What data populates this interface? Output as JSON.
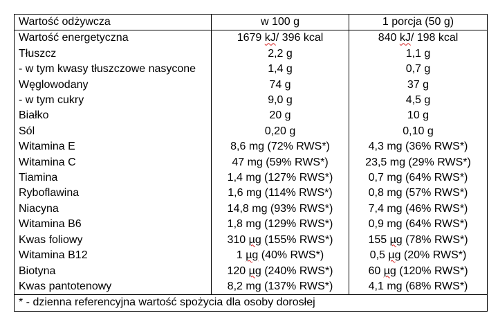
{
  "table": {
    "headers": [
      "Wartość odżywcza",
      "w 100 g",
      "1 porcja (50 g)"
    ],
    "rows": [
      {
        "name": "Wartość energetyczna",
        "per100_pre": "1679 ",
        "per100_mark": "kJ",
        "per100_post": "/ 396 kcal",
        "portion_pre": "840 ",
        "portion_mark": "kJ",
        "portion_post": "/ 198 kcal"
      },
      {
        "name": "Tłuszcz",
        "per100": "2,2 g",
        "portion": "1,1 g"
      },
      {
        "name": "- w tym kwasy tłuszczowe nasycone",
        "per100": "1,4 g",
        "portion": "0,7 g"
      },
      {
        "name": "Węglowodany",
        "per100": "74 g",
        "portion": "37 g"
      },
      {
        "name": "- w tym cukry",
        "per100": "9,0 g",
        "portion": "4,5 g"
      },
      {
        "name": "Białko",
        "per100": "20 g",
        "portion": "10 g"
      },
      {
        "name": "Sól",
        "per100": "0,20 g",
        "portion": "0,10 g"
      },
      {
        "name": "Witamina E",
        "per100": "8,6 mg (72% RWS*)",
        "portion": "4,3 mg (36% RWS*)"
      },
      {
        "name": "Witamina C",
        "per100": "47 mg (59% RWS*)",
        "portion": "23,5 mg (29% RWS*)"
      },
      {
        "name": "Tiamina",
        "per100": "1,4 mg (127% RWS*)",
        "portion": "0,7 mg (64% RWS*)"
      },
      {
        "name": "Ryboflawina",
        "per100": "1,6 mg (114% RWS*)",
        "portion": "0,8 mg (57% RWS*)"
      },
      {
        "name": "Niacyna",
        "per100": "14,8 mg (93% RWS*)",
        "portion": "7,4 mg (46% RWS*)"
      },
      {
        "name": "Witamina B6",
        "per100": "1,8 mg (129% RWS*)",
        "portion": "0,9 mg (64% RWS*)"
      },
      {
        "name": "Kwas foliowy",
        "per100_pre": "310 ",
        "per100_mark": "µg",
        "per100_post": " (155% RWS*)",
        "portion_pre": "155 ",
        "portion_mark": "µg",
        "portion_post": " (78% RWS*)"
      },
      {
        "name": "Witamina B12",
        "per100_pre": "1 ",
        "per100_mark": "µg",
        "per100_post": " (40% RWS*)",
        "portion_pre": "0,5 ",
        "portion_mark": "µg",
        "portion_post": " (20% RWS*)"
      },
      {
        "name": "Biotyna",
        "per100_pre": "120 ",
        "per100_mark": "µg",
        "per100_post": " (240% RWS*)",
        "portion_pre": "60 ",
        "portion_mark": "µg",
        "portion_post": " (120% RWS*)"
      },
      {
        "name": "Kwas pantotenowy",
        "per100": "8,2 mg (137% RWS*)",
        "portion": "4,1 mg (68% RWS*)"
      }
    ],
    "footnote": "* - dzienna referencyjna wartość spożycia dla osoby dorosłej"
  },
  "colors": {
    "border": "#000000",
    "text": "#000000",
    "spellcheck_underline": "#d42020"
  }
}
